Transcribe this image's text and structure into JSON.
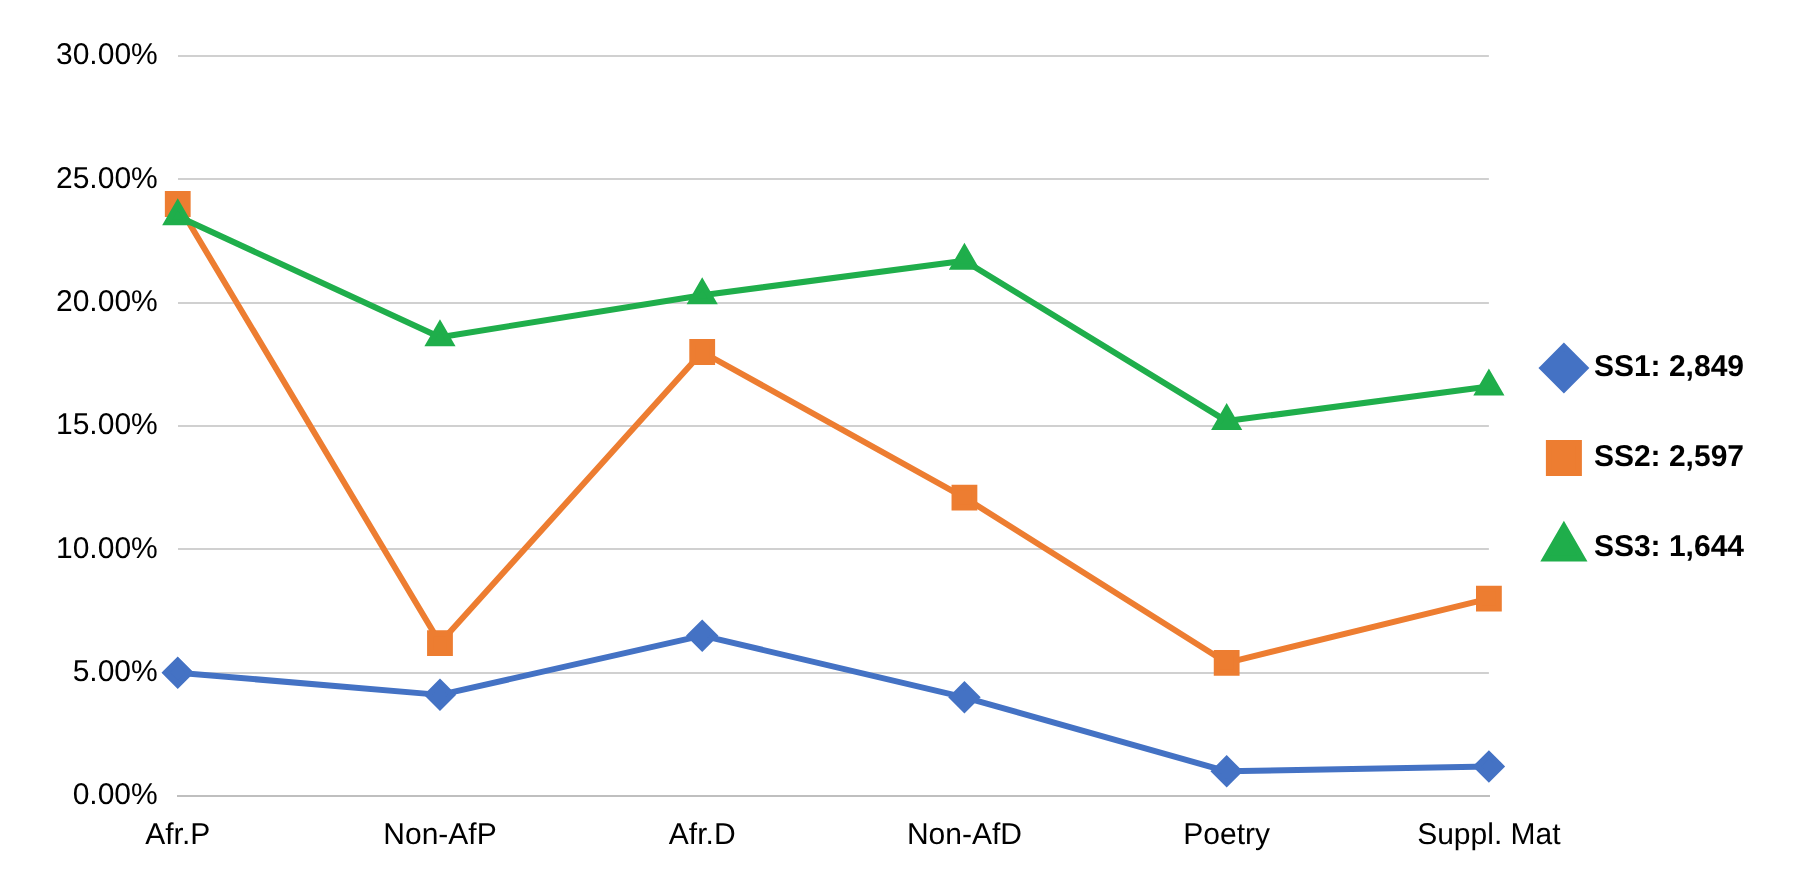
{
  "chart_data": {
    "type": "line",
    "categories": [
      "Afr.P",
      "Non-AfP",
      "Afr.D",
      "Non-AfD",
      "Poetry",
      "Suppl. Mat"
    ],
    "series": [
      {
        "name": "SS1: 2,849",
        "color": "#4472c4",
        "marker": "diamond",
        "values": [
          5.0,
          4.1,
          6.5,
          4.0,
          1.0,
          1.2
        ]
      },
      {
        "name": "SS2: 2,597",
        "color": "#ed7d31",
        "marker": "square",
        "values": [
          24.0,
          6.2,
          18.0,
          12.1,
          5.4,
          8.0
        ]
      },
      {
        "name": "SS3: 1,644",
        "color": "#1fae4b",
        "marker": "triangle",
        "values": [
          23.5,
          18.6,
          20.3,
          21.7,
          15.2,
          16.6
        ]
      }
    ],
    "ylim": [
      0,
      30
    ],
    "yticks": [
      {
        "value": 0,
        "label": "0.00%"
      },
      {
        "value": 5,
        "label": "5.00%"
      },
      {
        "value": 10,
        "label": "10.00%"
      },
      {
        "value": 15,
        "label": "15.00%"
      },
      {
        "value": 20,
        "label": "20.00%"
      },
      {
        "value": 25,
        "label": "25.00%"
      },
      {
        "value": 30,
        "label": "30.00%"
      }
    ],
    "grid": "y",
    "legend": "right",
    "line_style": "solid"
  }
}
